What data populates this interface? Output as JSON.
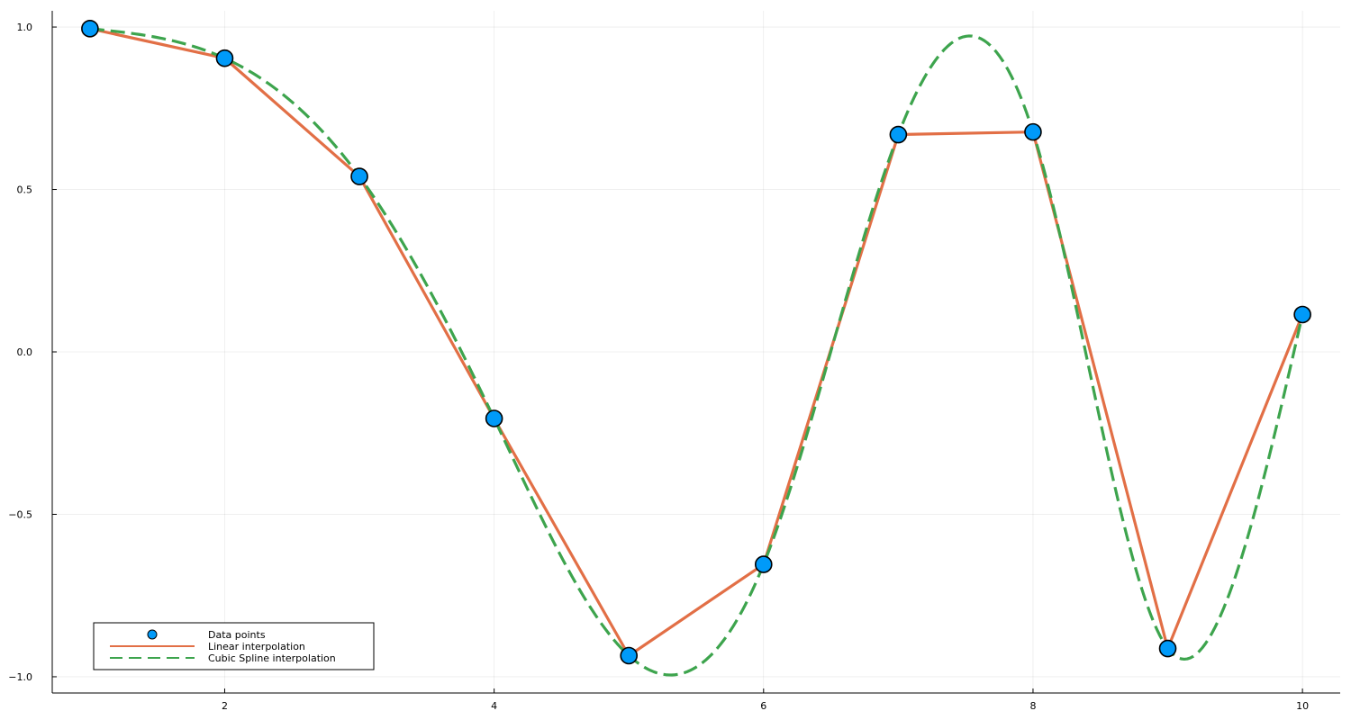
{
  "chart_data": {
    "type": "line",
    "title": "",
    "xlabel": "",
    "ylabel": "",
    "xlim": [
      0.72,
      10.28
    ],
    "ylim": [
      -1.05,
      1.05
    ],
    "x_ticks": [
      {
        "value": 2,
        "label": "2"
      },
      {
        "value": 4,
        "label": "4"
      },
      {
        "value": 6,
        "label": "6"
      },
      {
        "value": 8,
        "label": "8"
      },
      {
        "value": 10,
        "label": "10"
      }
    ],
    "y_ticks": [
      {
        "value": -1.0,
        "label": "−1.0"
      },
      {
        "value": -0.5,
        "label": "−0.5"
      },
      {
        "value": 0.0,
        "label": "0.0"
      },
      {
        "value": 0.5,
        "label": "0.5"
      },
      {
        "value": 1.0,
        "label": "1.0"
      }
    ],
    "grid": true,
    "legend_position": "bottom-left",
    "series": [
      {
        "name": "Data points",
        "kind": "scatter",
        "color": "#009af9",
        "x": [
          1,
          2,
          3,
          4,
          5,
          6,
          7,
          8,
          9,
          10
        ],
        "y": [
          0.995,
          0.904,
          0.54,
          -0.205,
          -0.935,
          -0.654,
          0.669,
          0.677,
          -0.913,
          0.115
        ]
      },
      {
        "name": "Linear interpolation",
        "kind": "line",
        "style": "solid",
        "color": "#e26f46",
        "x": [
          1,
          2,
          3,
          4,
          5,
          6,
          7,
          8,
          9,
          10
        ],
        "y": [
          0.995,
          0.904,
          0.54,
          -0.205,
          -0.935,
          -0.654,
          0.669,
          0.677,
          -0.913,
          0.115
        ]
      },
      {
        "name": "Cubic Spline interpolation",
        "kind": "line",
        "style": "dashed",
        "color": "#3da44d",
        "x": [
          1,
          2,
          3,
          4,
          5,
          6,
          7,
          8,
          9,
          10
        ],
        "y": [
          0.995,
          0.904,
          0.54,
          -0.205,
          -0.935,
          -0.654,
          0.669,
          0.677,
          -0.913,
          0.115
        ]
      }
    ]
  }
}
